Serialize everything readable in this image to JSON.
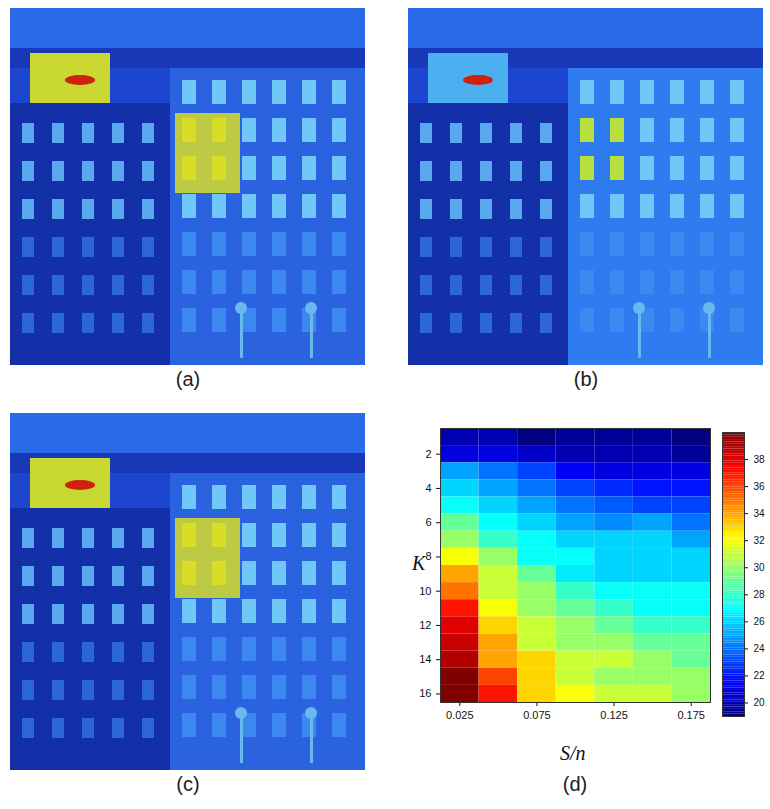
{
  "panels": [
    {
      "label": "(a)"
    },
    {
      "label": "(b)"
    },
    {
      "label": "(c)"
    }
  ],
  "chart_data": {
    "type": "heatmap",
    "label": "(d)",
    "xlabel": "S/n",
    "ylabel": "K",
    "x": [
      0.025,
      0.05,
      0.075,
      0.1,
      0.125,
      0.15,
      0.175
    ],
    "y": [
      1,
      2,
      3,
      4,
      5,
      6,
      7,
      8,
      9,
      10,
      11,
      12,
      13,
      14,
      15,
      16
    ],
    "cells": [
      [
        20,
        20,
        19,
        19.5,
        19.5,
        19.5,
        19
      ],
      [
        21,
        21,
        20.5,
        20,
        20,
        20,
        19.5
      ],
      [
        25,
        24,
        23,
        21.5,
        21,
        21,
        21
      ],
      [
        26,
        25,
        24,
        23,
        22.5,
        22,
        22
      ],
      [
        27,
        26,
        25,
        24,
        23.5,
        23,
        23
      ],
      [
        29,
        27,
        26,
        25,
        24.5,
        25,
        24
      ],
      [
        30,
        28,
        27,
        26,
        26,
        26,
        25
      ],
      [
        32,
        30,
        27,
        27,
        26,
        26,
        26
      ],
      [
        34,
        31,
        29,
        26.5,
        26,
        26,
        26
      ],
      [
        35,
        31,
        30,
        28,
        27,
        27,
        27
      ],
      [
        37,
        32,
        30,
        29,
        28,
        27,
        27
      ],
      [
        38,
        33,
        31,
        30,
        29,
        28,
        28
      ],
      [
        38.5,
        34,
        31,
        30,
        30,
        29,
        29
      ],
      [
        39,
        34,
        33,
        31,
        31,
        30,
        29
      ],
      [
        40,
        36,
        33,
        31,
        30,
        30,
        30
      ],
      [
        40,
        37,
        33,
        32,
        31,
        31,
        30
      ]
    ],
    "xlim": [
      0.0125,
      0.1875
    ],
    "ylim": [
      0.5,
      16.5
    ],
    "xticks": [
      0.025,
      0.075,
      0.125,
      0.175
    ],
    "yticks": [
      2,
      4,
      6,
      8,
      10,
      12,
      14,
      16
    ],
    "colorbar_range": [
      19,
      40
    ],
    "colorbar_ticks": [
      20,
      22,
      24,
      26,
      28,
      30,
      32,
      34,
      36,
      38
    ]
  }
}
